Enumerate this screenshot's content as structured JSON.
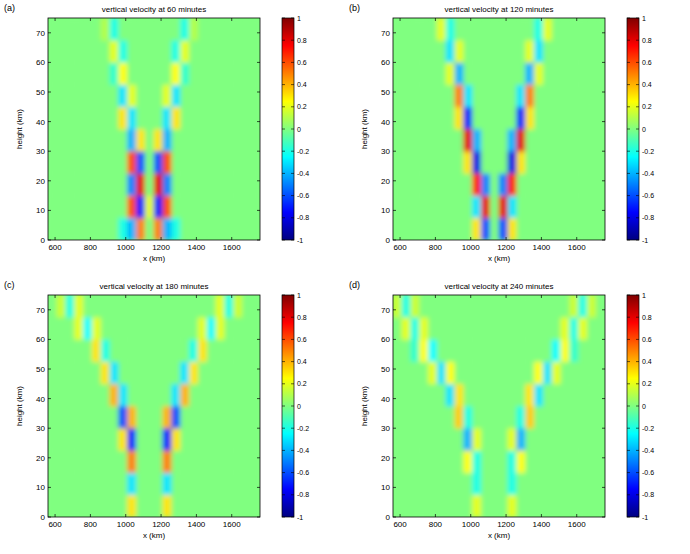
{
  "chart_data": [
    {
      "type": "heatmap",
      "panel": "(a)",
      "title": "vertical velocity at 60 minutes",
      "x_label": "x (km)",
      "y_label": "height (km)",
      "xlim": [
        560,
        1760
      ],
      "ylim": [
        0,
        75
      ],
      "xticks": [
        600,
        800,
        1000,
        1200,
        1400,
        1600
      ],
      "yticks": [
        0,
        10,
        20,
        30,
        40,
        50,
        60,
        70
      ],
      "color_range": [
        -1,
        1
      ],
      "color_ticks": [
        -1,
        -0.8,
        -0.6,
        -0.4,
        -0.2,
        0,
        0.2,
        0.4,
        0.6,
        0.8,
        1
      ],
      "cells": [
        [
          0,
          0,
          0,
          0,
          0,
          0,
          0,
          0,
          -0.2,
          -0.4,
          0.5,
          0,
          0.5,
          -0.4,
          -0.2,
          0,
          0,
          0,
          0,
          0,
          0,
          0,
          0,
          0
        ],
        [
          0,
          0,
          0,
          0,
          0,
          0,
          0,
          0,
          0,
          0.6,
          -0.7,
          0.2,
          -0.7,
          0.6,
          0,
          0,
          0,
          0,
          0,
          0,
          0,
          0,
          0,
          0
        ],
        [
          0,
          0,
          0,
          0,
          0,
          0,
          0,
          0,
          0,
          -0.5,
          0.8,
          0,
          0.8,
          -0.5,
          0,
          0,
          0,
          0,
          0,
          0,
          0,
          0,
          0,
          0
        ],
        [
          0,
          0,
          0,
          0,
          0,
          0,
          0,
          0,
          0,
          0.6,
          -0.6,
          0,
          -0.6,
          0.6,
          0,
          0,
          0,
          0,
          0,
          0,
          0,
          0,
          0,
          0
        ],
        [
          0,
          0,
          0,
          0,
          0,
          0,
          0,
          0,
          0,
          -0.4,
          0.3,
          0,
          0.3,
          -0.4,
          0,
          0,
          0,
          0,
          0,
          0,
          0,
          0,
          0,
          0
        ],
        [
          0,
          0,
          0,
          0,
          0,
          0,
          0,
          0,
          0.3,
          -0.3,
          0,
          0,
          0,
          -0.3,
          0.3,
          0,
          0,
          0,
          0,
          0,
          0,
          0,
          0,
          0
        ],
        [
          0,
          0,
          0,
          0,
          0,
          0,
          0,
          0,
          -0.3,
          0.2,
          0,
          0,
          0,
          0.2,
          -0.3,
          0,
          0,
          0,
          0,
          0,
          0,
          0,
          0,
          0
        ],
        [
          0,
          0,
          0,
          0,
          0,
          0,
          0,
          -0.15,
          0.25,
          0,
          0,
          0,
          0,
          0,
          0.25,
          -0.15,
          0,
          0,
          0,
          0,
          0,
          0,
          0,
          0
        ],
        [
          0,
          0,
          0,
          0,
          0,
          0,
          0,
          0.2,
          -0.2,
          0,
          0,
          0,
          0,
          0,
          -0.2,
          0.2,
          0,
          0,
          0,
          0,
          0,
          0,
          0,
          0
        ],
        [
          0,
          0,
          0,
          0,
          0,
          0,
          0.1,
          -0.2,
          0,
          0,
          0,
          0,
          0,
          0,
          0,
          -0.2,
          0.1,
          0,
          0,
          0,
          0,
          0,
          0,
          0
        ]
      ]
    },
    {
      "type": "heatmap",
      "panel": "(b)",
      "title": "vertical velocity at 120 minutes",
      "x_label": "x (km)",
      "y_label": "height (km)",
      "xlim": [
        560,
        1760
      ],
      "ylim": [
        0,
        75
      ],
      "xticks": [
        600,
        800,
        1000,
        1200,
        1400,
        1600
      ],
      "yticks": [
        0,
        10,
        20,
        30,
        40,
        50,
        60,
        70
      ],
      "color_range": [
        -1,
        1
      ],
      "color_ticks": [
        -1,
        -0.8,
        -0.6,
        -0.4,
        -0.2,
        0,
        0.2,
        0.4,
        0.6,
        0.8,
        1
      ],
      "cells": [
        [
          0,
          0,
          0,
          0,
          0,
          0,
          0,
          0,
          0,
          0.3,
          -0.6,
          0,
          -0.6,
          0.3,
          0,
          0,
          0,
          0,
          0,
          0,
          0,
          0,
          0,
          0
        ],
        [
          0,
          0,
          0,
          0,
          0,
          0,
          0,
          0,
          0,
          -0.3,
          0.8,
          0,
          0.8,
          -0.3,
          0,
          0,
          0,
          0,
          0,
          0,
          0,
          0,
          0,
          0
        ],
        [
          0,
          0,
          0,
          0,
          0,
          0,
          0,
          0,
          0,
          0.7,
          -0.5,
          0,
          -0.5,
          0.7,
          0,
          0,
          0,
          0,
          0,
          0,
          0,
          0,
          0,
          0
        ],
        [
          0,
          0,
          0,
          0,
          0,
          0,
          0,
          0,
          0.3,
          -0.8,
          0,
          0,
          0,
          -0.8,
          0.3,
          0,
          0,
          0,
          0,
          0,
          0,
          0,
          0,
          0
        ],
        [
          0,
          0,
          0,
          0,
          0,
          0,
          0,
          0,
          0.8,
          -0.4,
          0,
          0,
          0,
          -0.4,
          0.8,
          0,
          0,
          0,
          0,
          0,
          0,
          0,
          0,
          0
        ],
        [
          0,
          0,
          0,
          0,
          0,
          0,
          0,
          0.3,
          -0.7,
          0,
          0,
          0,
          0,
          0,
          -0.7,
          0.3,
          0,
          0,
          0,
          0,
          0,
          0,
          0,
          0
        ],
        [
          0,
          0,
          0,
          0,
          0,
          0,
          0,
          0.5,
          -0.3,
          0,
          0,
          0,
          0,
          0,
          -0.3,
          0.5,
          0,
          0,
          0,
          0,
          0,
          0,
          0,
          0
        ],
        [
          0,
          0,
          0,
          0,
          0,
          0,
          0.2,
          -0.4,
          0,
          0,
          0,
          0,
          0,
          0,
          0,
          -0.4,
          0.2,
          0,
          0,
          0,
          0,
          0,
          0,
          0
        ],
        [
          0,
          0,
          0,
          0,
          0,
          0,
          -0.3,
          0.2,
          0,
          0,
          0,
          0,
          0,
          0,
          0,
          0.2,
          -0.3,
          0,
          0,
          0,
          0,
          0,
          0,
          0
        ],
        [
          0,
          0,
          0,
          0,
          0,
          0.2,
          -0.2,
          0,
          0,
          0,
          0,
          0,
          0,
          0,
          0,
          0,
          -0.2,
          0.2,
          0,
          0,
          0,
          0,
          0,
          0
        ]
      ]
    },
    {
      "type": "heatmap",
      "panel": "(c)",
      "title": "vertical velocity at 180 minutes",
      "x_label": "x (km)",
      "y_label": "height (km)",
      "xlim": [
        560,
        1760
      ],
      "ylim": [
        0,
        75
      ],
      "xticks": [
        600,
        800,
        1000,
        1200,
        1400,
        1600
      ],
      "yticks": [
        0,
        10,
        20,
        30,
        40,
        50,
        60,
        70
      ],
      "color_range": [
        -1,
        1
      ],
      "color_ticks": [
        -1,
        -0.8,
        -0.6,
        -0.4,
        -0.2,
        0,
        0.2,
        0.4,
        0.6,
        0.8,
        1
      ],
      "cells": [
        [
          0,
          0,
          0,
          0,
          0,
          0,
          0,
          0,
          0,
          0.3,
          0,
          0,
          0,
          0.3,
          0,
          0,
          0,
          0,
          0,
          0,
          0,
          0,
          0,
          0
        ],
        [
          0,
          0,
          0,
          0,
          0,
          0,
          0,
          0,
          0,
          -0.3,
          0,
          0,
          0,
          -0.3,
          0,
          0,
          0,
          0,
          0,
          0,
          0,
          0,
          0,
          0
        ],
        [
          0,
          0,
          0,
          0,
          0,
          0,
          0,
          0,
          0,
          0.5,
          0,
          0,
          0,
          0.5,
          0,
          0,
          0,
          0,
          0,
          0,
          0,
          0,
          0,
          0
        ],
        [
          0,
          0,
          0,
          0,
          0,
          0,
          0,
          0,
          0.3,
          -0.7,
          0,
          0,
          0,
          -0.7,
          0.3,
          0,
          0,
          0,
          0,
          0,
          0,
          0,
          0,
          0
        ],
        [
          0,
          0,
          0,
          0,
          0,
          0,
          0,
          0,
          -0.6,
          0.4,
          0,
          0,
          0,
          0.4,
          -0.6,
          0,
          0,
          0,
          0,
          0,
          0,
          0,
          0,
          0
        ],
        [
          0,
          0,
          0,
          0,
          0,
          0,
          0,
          0.4,
          -0.3,
          0,
          0,
          0,
          0,
          0,
          -0.3,
          0.4,
          0,
          0,
          0,
          0,
          0,
          0,
          0,
          0
        ],
        [
          0,
          0,
          0,
          0,
          0,
          0,
          0.3,
          -0.3,
          0,
          0,
          0,
          0,
          0,
          0,
          0,
          -0.3,
          0.3,
          0,
          0,
          0,
          0,
          0,
          0,
          0
        ],
        [
          0,
          0,
          0,
          0,
          0,
          0.3,
          -0.2,
          0,
          0,
          0,
          0,
          0,
          0,
          0,
          0,
          0,
          -0.2,
          0.3,
          0,
          0,
          0,
          0,
          0,
          0
        ],
        [
          0,
          0,
          0,
          0.2,
          -0.25,
          0.2,
          0,
          0,
          0,
          0,
          0,
          0,
          0,
          0,
          0,
          0,
          0,
          0.2,
          -0.25,
          0.2,
          0,
          0,
          0,
          0
        ],
        [
          0,
          0.15,
          -0.2,
          0.2,
          0,
          0,
          0,
          0,
          0,
          0,
          0,
          0,
          0,
          0,
          0,
          0,
          0,
          0,
          0,
          0.2,
          -0.2,
          0.15,
          0,
          0
        ]
      ]
    },
    {
      "type": "heatmap",
      "panel": "(d)",
      "title": "vertical velocity at 240 minutes",
      "x_label": "x (km)",
      "y_label": "height (km)",
      "xlim": [
        560,
        1760
      ],
      "ylim": [
        0,
        75
      ],
      "xticks": [
        600,
        800,
        1000,
        1200,
        1400,
        1600
      ],
      "yticks": [
        0,
        10,
        20,
        30,
        40,
        50,
        60,
        70
      ],
      "color_range": [
        -1,
        1
      ],
      "color_ticks": [
        -1,
        -0.8,
        -0.6,
        -0.4,
        -0.2,
        0,
        0.2,
        0.4,
        0.6,
        0.8,
        1
      ],
      "cells": [
        [
          0,
          0,
          0,
          0,
          0,
          0,
          0,
          0,
          0,
          0.2,
          0,
          0,
          0,
          0.2,
          0,
          0,
          0,
          0,
          0,
          0,
          0,
          0,
          0,
          0
        ],
        [
          0,
          0,
          0,
          0,
          0,
          0,
          0,
          0,
          0,
          -0.2,
          0,
          0,
          0,
          -0.2,
          0,
          0,
          0,
          0,
          0,
          0,
          0,
          0,
          0,
          0
        ],
        [
          0,
          0,
          0,
          0,
          0,
          0,
          0,
          0,
          0.25,
          -0.2,
          0,
          0,
          0,
          -0.2,
          0.25,
          0,
          0,
          0,
          0,
          0,
          0,
          0,
          0,
          0
        ],
        [
          0,
          0,
          0,
          0,
          0,
          0,
          0,
          0,
          -0.4,
          0.2,
          0,
          0,
          0,
          0.2,
          -0.4,
          0,
          0,
          0,
          0,
          0,
          0,
          0,
          0,
          0
        ],
        [
          0,
          0,
          0,
          0,
          0,
          0,
          0,
          0.35,
          -0.2,
          0,
          0,
          0,
          0,
          0,
          -0.2,
          0.35,
          0,
          0,
          0,
          0,
          0,
          0,
          0,
          0
        ],
        [
          0,
          0,
          0,
          0,
          0,
          0,
          -0.3,
          0.3,
          0,
          0,
          0,
          0,
          0,
          0,
          0,
          0.3,
          -0.3,
          0,
          0,
          0,
          0,
          0,
          0,
          0
        ],
        [
          0,
          0,
          0,
          0,
          0.2,
          -0.3,
          0.25,
          0,
          0,
          0,
          0,
          0,
          0,
          0,
          0,
          0,
          0.25,
          -0.3,
          0.2,
          0,
          0,
          0,
          0,
          0
        ],
        [
          0,
          0,
          -0.15,
          0.25,
          -0.25,
          0,
          0,
          0,
          0,
          0,
          0,
          0,
          0,
          0,
          0,
          0,
          0,
          0,
          -0.25,
          0.25,
          -0.15,
          0,
          0,
          0
        ],
        [
          0,
          0.2,
          -0.2,
          0.2,
          0,
          0,
          0,
          0,
          0,
          0,
          0,
          0,
          0,
          0,
          0,
          0,
          0,
          0,
          0,
          0.2,
          -0.2,
          0.2,
          0,
          0
        ],
        [
          0.15,
          -0.2,
          0.15,
          0,
          0,
          0,
          0,
          0,
          0,
          0,
          0,
          0,
          0,
          0,
          0,
          0,
          0,
          0,
          0,
          0,
          0.15,
          -0.2,
          0.15,
          0
        ]
      ]
    }
  ]
}
